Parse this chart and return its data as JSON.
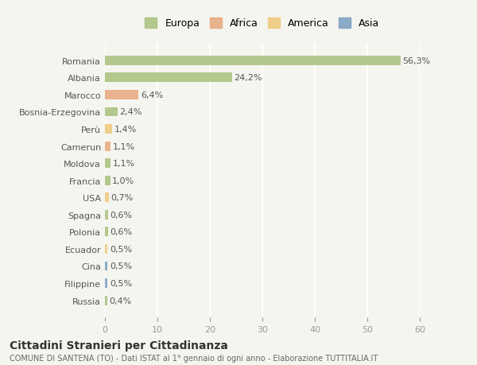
{
  "countries": [
    "Romania",
    "Albania",
    "Marocco",
    "Bosnia-Erzegovina",
    "Perù",
    "Camerun",
    "Moldova",
    "Francia",
    "USA",
    "Spagna",
    "Polonia",
    "Ecuador",
    "Cina",
    "Filippine",
    "Russia"
  ],
  "values": [
    56.3,
    24.2,
    6.4,
    2.4,
    1.4,
    1.1,
    1.1,
    1.0,
    0.7,
    0.6,
    0.6,
    0.5,
    0.5,
    0.5,
    0.4
  ],
  "labels": [
    "56,3%",
    "24,2%",
    "6,4%",
    "2,4%",
    "1,4%",
    "1,1%",
    "1,1%",
    "1,0%",
    "0,7%",
    "0,6%",
    "0,6%",
    "0,5%",
    "0,5%",
    "0,5%",
    "0,4%"
  ],
  "continents": [
    "Europa",
    "Europa",
    "Africa",
    "Europa",
    "America",
    "Africa",
    "Europa",
    "Europa",
    "America",
    "Europa",
    "Europa",
    "America",
    "Asia",
    "Asia",
    "Europa"
  ],
  "continent_colors": {
    "Europa": "#a8c17c",
    "Africa": "#e8a87c",
    "America": "#f0c97a",
    "Asia": "#7a9ec0"
  },
  "legend_order": [
    "Europa",
    "Africa",
    "America",
    "Asia"
  ],
  "legend_colors": [
    "#a8c17c",
    "#e8a87c",
    "#f0c97a",
    "#7a9ec0"
  ],
  "background_color": "#f5f5f0",
  "title": "Cittadini Stranieri per Cittadinanza",
  "subtitle": "COMUNE DI SANTENA (TO) - Dati ISTAT al 1° gennaio di ogni anno - Elaborazione TUTTITALIA.IT",
  "xlabel_range": [
    0,
    60
  ],
  "xticks": [
    0,
    10,
    20,
    30,
    40,
    50,
    60
  ]
}
